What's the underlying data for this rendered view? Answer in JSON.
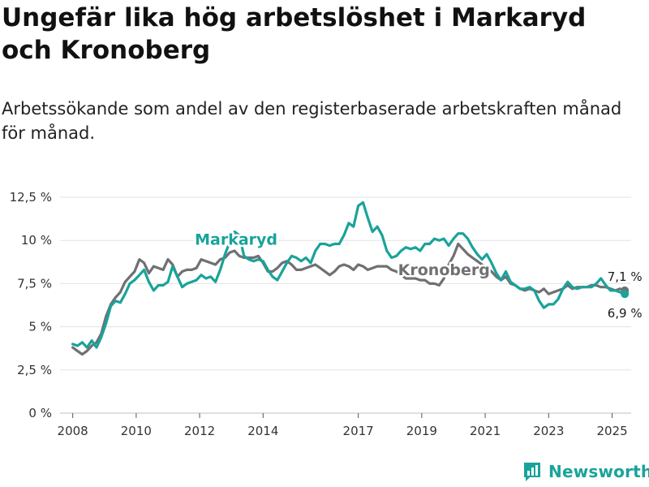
{
  "chart_data": {
    "type": "line",
    "title": "Ungefär lika hög arbetslöshet i Markaryd och Kronoberg",
    "subtitle": "Arbetssökande som andel av den registerbaserade arbetskraften månad för månad.",
    "xlabel": "",
    "ylabel": "",
    "ylim": [
      0,
      12.5
    ],
    "xlim": [
      2007.6,
      2025.6
    ],
    "y_ticks": [
      {
        "value": 0,
        "label": "0 %"
      },
      {
        "value": 2.5,
        "label": "2,5 %"
      },
      {
        "value": 5,
        "label": "5 %"
      },
      {
        "value": 7.5,
        "label": "7,5 %"
      },
      {
        "value": 10,
        "label": "10 %"
      },
      {
        "value": 12.5,
        "label": "12,5 %"
      }
    ],
    "x_ticks": [
      {
        "value": 2008,
        "label": "2008"
      },
      {
        "value": 2010,
        "label": "2010"
      },
      {
        "value": 2012,
        "label": "2012"
      },
      {
        "value": 2014,
        "label": "2014"
      },
      {
        "value": 2017,
        "label": "2017"
      },
      {
        "value": 2019,
        "label": "2019"
      },
      {
        "value": 2021,
        "label": "2021"
      },
      {
        "value": 2023,
        "label": "2023"
      },
      {
        "value": 2025,
        "label": "2025"
      }
    ],
    "grid": true,
    "series": [
      {
        "name": "Markaryd",
        "color": "#19a39a",
        "end_label": "6,9 %",
        "x": [
          2008.0,
          2008.15,
          2008.3,
          2008.45,
          2008.6,
          2008.75,
          2008.9,
          2009.05,
          2009.2,
          2009.35,
          2009.5,
          2009.65,
          2009.8,
          2009.95,
          2010.1,
          2010.25,
          2010.4,
          2010.55,
          2010.7,
          2010.85,
          2011.0,
          2011.15,
          2011.3,
          2011.45,
          2011.6,
          2011.75,
          2011.9,
          2012.05,
          2012.2,
          2012.35,
          2012.5,
          2012.65,
          2012.8,
          2012.95,
          2013.1,
          2013.25,
          2013.4,
          2013.55,
          2013.7,
          2013.85,
          2014.0,
          2014.15,
          2014.3,
          2014.45,
          2014.6,
          2014.75,
          2014.9,
          2015.05,
          2015.2,
          2015.35,
          2015.5,
          2015.65,
          2015.8,
          2015.95,
          2016.1,
          2016.25,
          2016.4,
          2016.55,
          2016.7,
          2016.85,
          2017.0,
          2017.15,
          2017.3,
          2017.45,
          2017.6,
          2017.75,
          2017.9,
          2018.05,
          2018.2,
          2018.35,
          2018.5,
          2018.65,
          2018.8,
          2018.95,
          2019.1,
          2019.25,
          2019.4,
          2019.55,
          2019.7,
          2019.85,
          2020.0,
          2020.15,
          2020.3,
          2020.45,
          2020.6,
          2020.75,
          2020.9,
          2021.05,
          2021.2,
          2021.35,
          2021.5,
          2021.65,
          2021.8,
          2021.95,
          2022.1,
          2022.25,
          2022.4,
          2022.55,
          2022.7,
          2022.85,
          2023.0,
          2023.15,
          2023.3,
          2023.45,
          2023.6,
          2023.75,
          2023.9,
          2024.05,
          2024.2,
          2024.35,
          2024.5,
          2024.65,
          2024.8,
          2024.95,
          2025.1,
          2025.25,
          2025.4
        ],
        "y": [
          4.0,
          3.9,
          4.1,
          3.8,
          4.2,
          3.8,
          4.4,
          5.2,
          6.2,
          6.5,
          6.4,
          6.9,
          7.5,
          7.7,
          8.0,
          8.3,
          7.6,
          7.1,
          7.4,
          7.4,
          7.6,
          8.5,
          7.9,
          7.3,
          7.5,
          7.6,
          7.7,
          8.0,
          7.8,
          7.9,
          7.6,
          8.3,
          9.2,
          9.9,
          10.5,
          10.3,
          9.1,
          8.9,
          8.8,
          8.9,
          8.8,
          8.3,
          7.9,
          7.7,
          8.2,
          8.7,
          9.1,
          9.0,
          8.8,
          9.0,
          8.7,
          9.4,
          9.8,
          9.8,
          9.7,
          9.8,
          9.8,
          10.3,
          11.0,
          10.8,
          12.0,
          12.2,
          11.3,
          10.5,
          10.8,
          10.3,
          9.4,
          9.0,
          9.1,
          9.4,
          9.6,
          9.5,
          9.6,
          9.4,
          9.8,
          9.8,
          10.1,
          10.0,
          10.1,
          9.7,
          10.1,
          10.4,
          10.4,
          10.1,
          9.6,
          9.2,
          8.9,
          9.2,
          8.7,
          8.1,
          7.7,
          8.2,
          7.6,
          7.4,
          7.2,
          7.2,
          7.3,
          7.1,
          6.5,
          6.1,
          6.3,
          6.3,
          6.6,
          7.2,
          7.6,
          7.3,
          7.2,
          7.3,
          7.3,
          7.3,
          7.5,
          7.8,
          7.4,
          7.1,
          7.1,
          7.0,
          6.9
        ]
      },
      {
        "name": "Kronoberg",
        "color": "#707073",
        "end_label": "7,1 %",
        "x": [
          2008.0,
          2008.15,
          2008.3,
          2008.45,
          2008.6,
          2008.75,
          2008.9,
          2009.05,
          2009.2,
          2009.35,
          2009.5,
          2009.65,
          2009.8,
          2009.95,
          2010.1,
          2010.25,
          2010.4,
          2010.55,
          2010.7,
          2010.85,
          2011.0,
          2011.15,
          2011.3,
          2011.45,
          2011.6,
          2011.75,
          2011.9,
          2012.05,
          2012.2,
          2012.35,
          2012.5,
          2012.65,
          2012.8,
          2012.95,
          2013.1,
          2013.25,
          2013.4,
          2013.55,
          2013.7,
          2013.85,
          2014.0,
          2014.15,
          2014.3,
          2014.45,
          2014.6,
          2014.75,
          2014.9,
          2015.05,
          2015.2,
          2015.35,
          2015.5,
          2015.65,
          2015.8,
          2015.95,
          2016.1,
          2016.25,
          2016.4,
          2016.55,
          2016.7,
          2016.85,
          2017.0,
          2017.15,
          2017.3,
          2017.45,
          2017.6,
          2017.75,
          2017.9,
          2018.05,
          2018.2,
          2018.35,
          2018.5,
          2018.65,
          2018.8,
          2018.95,
          2019.1,
          2019.25,
          2019.4,
          2019.55,
          2019.7,
          2019.85,
          2020.0,
          2020.15,
          2020.3,
          2020.45,
          2020.6,
          2020.75,
          2020.9,
          2021.05,
          2021.2,
          2021.35,
          2021.5,
          2021.65,
          2021.8,
          2021.95,
          2022.1,
          2022.25,
          2022.4,
          2022.55,
          2022.7,
          2022.85,
          2023.0,
          2023.15,
          2023.3,
          2023.45,
          2023.6,
          2023.75,
          2023.9,
          2024.05,
          2024.2,
          2024.35,
          2024.5,
          2024.65,
          2024.8,
          2024.95,
          2025.1,
          2025.25,
          2025.4
        ],
        "y": [
          3.8,
          3.6,
          3.4,
          3.6,
          3.9,
          4.1,
          4.6,
          5.6,
          6.3,
          6.7,
          7.0,
          7.6,
          7.9,
          8.2,
          8.9,
          8.7,
          8.1,
          8.5,
          8.4,
          8.3,
          8.9,
          8.6,
          7.9,
          8.2,
          8.3,
          8.3,
          8.4,
          8.9,
          8.8,
          8.7,
          8.6,
          8.9,
          9.0,
          9.3,
          9.4,
          9.1,
          9.0,
          9.0,
          9.0,
          9.1,
          8.7,
          8.2,
          8.2,
          8.4,
          8.7,
          8.8,
          8.6,
          8.3,
          8.3,
          8.4,
          8.5,
          8.6,
          8.4,
          8.2,
          8.0,
          8.2,
          8.5,
          8.6,
          8.5,
          8.3,
          8.6,
          8.5,
          8.3,
          8.4,
          8.5,
          8.5,
          8.5,
          8.3,
          8.2,
          8.0,
          7.8,
          7.8,
          7.8,
          7.7,
          7.7,
          7.5,
          7.5,
          7.4,
          7.8,
          8.6,
          9.1,
          9.8,
          9.5,
          9.2,
          9.0,
          8.8,
          8.6,
          8.4,
          8.2,
          7.9,
          7.7,
          7.9,
          7.5,
          7.4,
          7.2,
          7.1,
          7.2,
          7.1,
          7.0,
          7.2,
          6.9,
          7.0,
          7.1,
          7.2,
          7.4,
          7.2,
          7.3,
          7.3,
          7.3,
          7.4,
          7.4,
          7.3,
          7.3,
          7.2,
          7.1,
          7.2,
          7.1
        ]
      }
    ]
  },
  "brand": {
    "name": "Newsworthy",
    "icon": "newsworthy-logo-icon"
  }
}
